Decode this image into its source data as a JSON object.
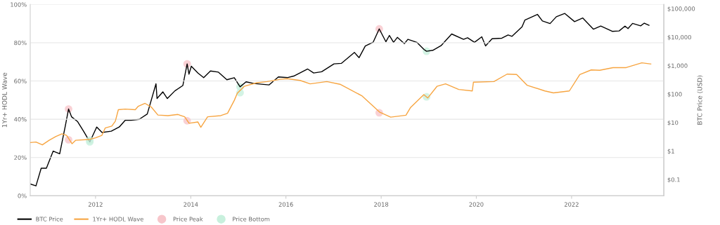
{
  "chart_data": {
    "type": "line",
    "ylabel": "1Yr+ HODL Wave",
    "y2label": "BTC Price (USD)",
    "xlim": [
      "2010-08-18",
      "2023-12-10"
    ],
    "xticks": [
      {
        "value": "2012-01-01",
        "label": "2012"
      },
      {
        "value": "2014-01-01",
        "label": "2014"
      },
      {
        "value": "2016-01-01",
        "label": "2016"
      },
      {
        "value": "2018-01-01",
        "label": "2018"
      },
      {
        "value": "2020-01-01",
        "label": "2020"
      },
      {
        "value": "2022-01-01",
        "label": "2022"
      }
    ],
    "ylim": [
      0,
      100
    ],
    "yticks": [
      {
        "value": 0,
        "label": "0%"
      },
      {
        "value": 20,
        "label": "20%"
      },
      {
        "value": 40,
        "label": "40%"
      },
      {
        "value": 60,
        "label": "60%"
      },
      {
        "value": 80,
        "label": "80%"
      },
      {
        "value": 100,
        "label": "100%"
      }
    ],
    "y2lim": [
      0.027,
      140000
    ],
    "y2ticks": [
      {
        "value": 0.1,
        "label": "$0.1"
      },
      {
        "value": 1,
        "label": "$1"
      },
      {
        "value": 10,
        "label": "$10"
      },
      {
        "value": 100,
        "label": "$100"
      },
      {
        "value": 1000,
        "label": "$1,000"
      },
      {
        "value": 10000,
        "label": "$10,000"
      },
      {
        "value": 100000,
        "label": "$100,000"
      }
    ],
    "log": "y2",
    "grid": "y",
    "legend": "bottom",
    "series": [
      {
        "name": "BTC Price",
        "axis": "y2",
        "color": "#000000",
        "x": [
          "2010-08-18",
          "2010-10-01",
          "2010-11-10",
          "2010-12-20",
          "2011-02-10",
          "2011-04-01",
          "2011-05-15",
          "2011-06-08",
          "2011-07-01",
          "2011-08-15",
          "2011-10-01",
          "2011-11-18",
          "2012-01-10",
          "2012-02-20",
          "2012-05-01",
          "2012-07-01",
          "2012-08-15",
          "2012-10-01",
          "2012-12-01",
          "2013-02-01",
          "2013-04-09",
          "2013-04-17",
          "2013-06-01",
          "2013-07-05",
          "2013-09-01",
          "2013-11-01",
          "2013-12-04",
          "2013-12-18",
          "2014-01-05",
          "2014-02-25",
          "2014-04-10",
          "2014-06-01",
          "2014-08-01",
          "2014-10-05",
          "2014-12-01",
          "2015-01-14",
          "2015-03-01",
          "2015-05-01",
          "2015-08-24",
          "2015-11-04",
          "2016-01-15",
          "2016-03-01",
          "2016-06-16",
          "2016-08-01",
          "2016-10-01",
          "2017-01-04",
          "2017-03-01",
          "2017-06-10",
          "2017-07-15",
          "2017-09-01",
          "2017-11-01",
          "2017-12-17",
          "2018-02-06",
          "2018-03-05",
          "2018-04-06",
          "2018-05-05",
          "2018-06-28",
          "2018-07-25",
          "2018-10-01",
          "2018-11-25",
          "2018-12-15",
          "2019-02-01",
          "2019-04-05",
          "2019-06-26",
          "2019-09-25",
          "2019-10-26",
          "2019-12-18",
          "2020-02-12",
          "2020-03-12",
          "2020-05-01",
          "2020-07-15",
          "2020-09-01",
          "2020-10-01",
          "2020-12-17",
          "2021-01-08",
          "2021-04-14",
          "2021-05-22",
          "2021-07-20",
          "2021-09-06",
          "2021-11-10",
          "2022-01-24",
          "2022-03-28",
          "2022-06-18",
          "2022-08-13",
          "2022-11-09",
          "2023-01-01",
          "2023-02-15",
          "2023-03-10",
          "2023-04-14",
          "2023-06-15",
          "2023-07-13",
          "2023-08-18"
        ],
        "values": [
          0.07,
          0.06,
          0.25,
          0.25,
          1.0,
          0.8,
          8,
          30,
          16,
          11,
          5,
          2.1,
          7,
          4.5,
          5,
          7,
          12,
          12,
          13,
          20,
          230,
          70,
          120,
          70,
          130,
          200,
          1150,
          500,
          950,
          550,
          380,
          650,
          590,
          320,
          375,
          180,
          270,
          235,
          210,
          400,
          380,
          430,
          760,
          550,
          610,
          1150,
          1200,
          2900,
          1900,
          4900,
          6700,
          19500,
          6900,
          11500,
          6600,
          9800,
          5900,
          8400,
          6600,
          3700,
          3200,
          3450,
          5000,
          12900,
          8400,
          9500,
          6600,
          10300,
          4900,
          8800,
          9200,
          11900,
          10700,
          23000,
          40000,
          63000,
          37000,
          30000,
          52000,
          68000,
          35000,
          47000,
          19000,
          24500,
          16000,
          16500,
          24500,
          20000,
          30400,
          25000,
          31000,
          26000
        ]
      },
      {
        "name": "1Yr+ HODL Wave",
        "axis": "y",
        "color": "#f7a541",
        "x": [
          "2010-08-18",
          "2010-10-01",
          "2010-11-19",
          "2011-01-10",
          "2011-03-01",
          "2011-04-19",
          "2011-05-24",
          "2011-07-05",
          "2011-08-01",
          "2011-11-10",
          "2012-01-01",
          "2012-02-19",
          "2012-03-15",
          "2012-05-05",
          "2012-06-01",
          "2012-06-24",
          "2012-08-15",
          "2012-11-01",
          "2012-11-24",
          "2013-01-15",
          "2013-03-05",
          "2013-04-24",
          "2013-07-10",
          "2013-09-24",
          "2013-11-15",
          "2013-12-19",
          "2014-02-24",
          "2014-03-19",
          "2014-05-10",
          "2014-08-19",
          "2014-10-10",
          "2014-12-01",
          "2014-12-24",
          "2015-02-15",
          "2015-05-24",
          "2015-08-10",
          "2015-11-19",
          "2016-01-10",
          "2016-04-19",
          "2016-07-05",
          "2016-11-10",
          "2017-02-19",
          "2017-08-05",
          "2017-12-19",
          "2018-03-15",
          "2018-07-10",
          "2018-08-15",
          "2018-11-24",
          "2018-12-24",
          "2019-03-05",
          "2019-05-10",
          "2019-08-19",
          "2019-12-01",
          "2019-12-10",
          "2020-05-15",
          "2020-08-24",
          "2020-11-05",
          "2021-01-24",
          "2021-06-10",
          "2021-08-15",
          "2021-12-15",
          "2022-03-05",
          "2022-06-01",
          "2022-08-05",
          "2022-11-15",
          "2023-02-24",
          "2023-06-24",
          "2023-09-01"
        ],
        "values": [
          27.8,
          28.1,
          26.6,
          29.0,
          30.9,
          32.4,
          31.6,
          27.2,
          29.0,
          29.4,
          30.3,
          31.6,
          35.4,
          36.4,
          39.0,
          45.0,
          45.3,
          45.0,
          46.8,
          48.3,
          46.3,
          42.2,
          41.9,
          42.5,
          41.3,
          37.9,
          38.6,
          35.8,
          41.3,
          41.9,
          43.1,
          49.9,
          53.6,
          57.2,
          59.1,
          59.7,
          60.9,
          61.2,
          60.3,
          58.5,
          59.7,
          58.3,
          52.3,
          43.8,
          41.1,
          42.1,
          46.2,
          52.9,
          51.1,
          57.2,
          58.5,
          55.6,
          54.8,
          59.4,
          59.7,
          63.6,
          63.4,
          57.8,
          54.8,
          53.8,
          54.8,
          63.4,
          65.8,
          65.6,
          67.0,
          67.0,
          69.5,
          68.9
        ]
      },
      {
        "name": "Price Peak",
        "type": "scatter",
        "axis": "y2",
        "color": "#f7c6cb",
        "marker": "circle",
        "x": [
          "2011-06-08",
          "2013-12-04",
          "2017-12-17"
        ],
        "values": [
          30,
          1150,
          19500
        ]
      },
      {
        "type": "scatter",
        "axis": "y",
        "color": "#f7c6cb",
        "marker": "circle",
        "x": [
          "2011-06-08",
          "2013-12-04",
          "2017-12-17"
        ],
        "values": [
          29.3,
          39.2,
          43.4
        ]
      },
      {
        "name": "Price Bottom",
        "type": "scatter",
        "axis": "y2",
        "color": "#c8f0dd",
        "marker": "circle",
        "x": [
          "2011-11-18",
          "2015-01-14",
          "2018-12-15"
        ],
        "values": [
          2.1,
          180,
          3200
        ]
      },
      {
        "type": "scatter",
        "axis": "y",
        "color": "#c8f0dd",
        "marker": "circle",
        "x": [
          "2011-11-18",
          "2015-01-14",
          "2018-12-15"
        ],
        "values": [
          29.0,
          53.9,
          51.7
        ]
      }
    ]
  }
}
